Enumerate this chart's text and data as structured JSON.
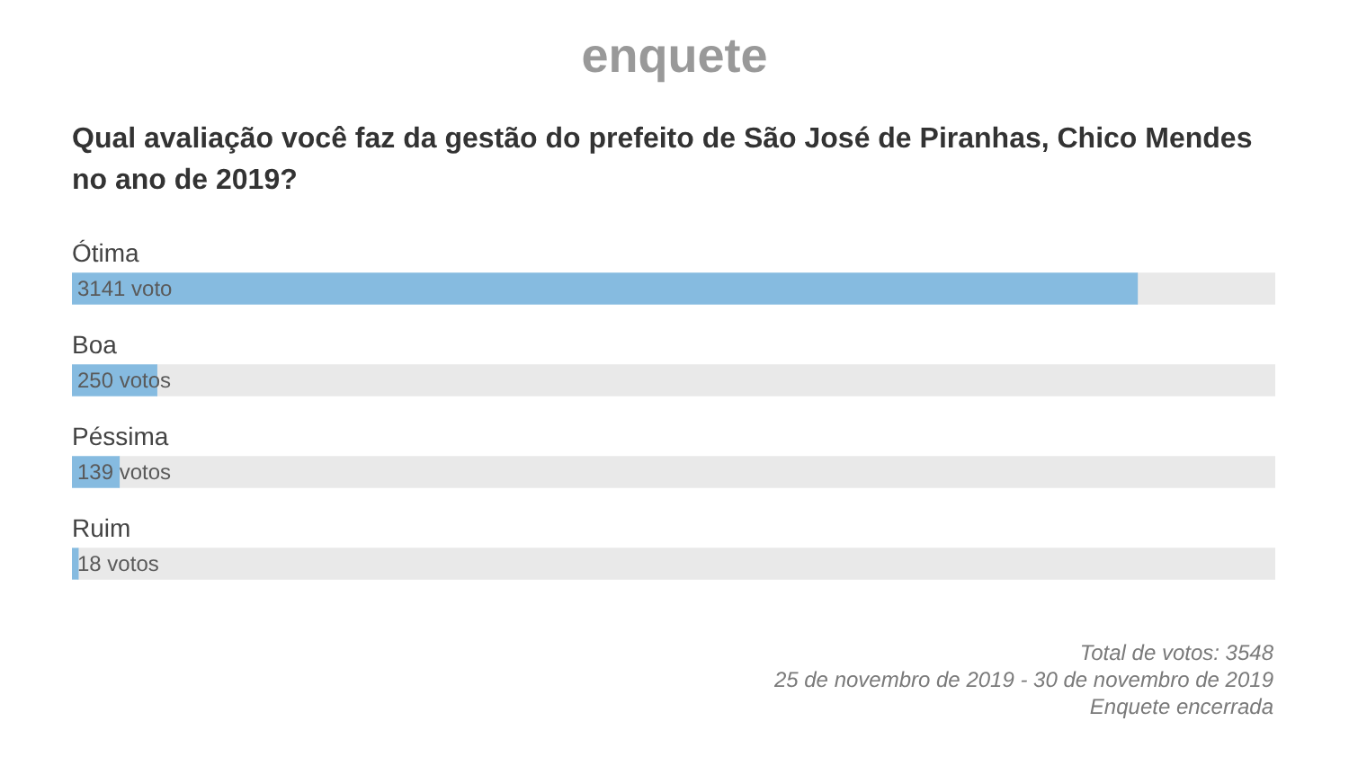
{
  "chart_data": {
    "type": "bar",
    "orientation": "horizontal",
    "stacked": true,
    "title": "enquete",
    "subtitle": "Qual avaliação você faz da gestão do prefeito de São José de Piranhas, Chico Mendes no ano de 2019?",
    "categories": [
      "Ótima",
      "Boa",
      "Péssima",
      "Ruim"
    ],
    "series": [
      {
        "values": [
          3141,
          250,
          139,
          18
        ],
        "value_labels": [
          "3141 voto",
          "250 votos",
          "139 votos",
          "18 votos"
        ],
        "color": "#86bbe0"
      },
      {
        "values": [
          407,
          3298,
          3409,
          3530
        ],
        "color": "#e9e9e9"
      }
    ],
    "xlim": [
      0,
      3548
    ],
    "tick_labels": "y",
    "annotations": [
      "Total de votos: 3548",
      "25 de novembro de 2019 - 30 de novembro de 2019",
      "Enquete encerrada"
    ]
  }
}
